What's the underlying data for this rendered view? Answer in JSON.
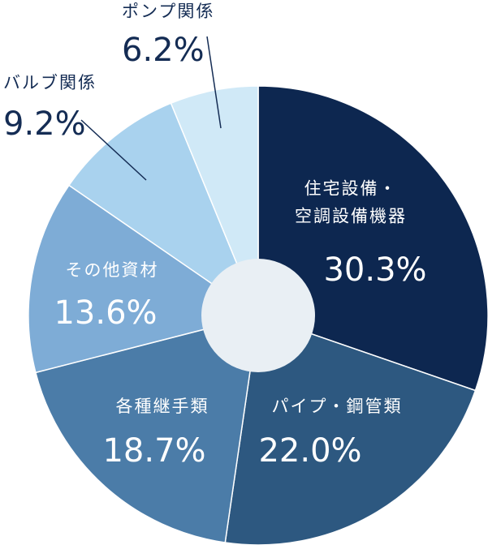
{
  "chart_data": {
    "type": "pie",
    "categories": [
      "住宅設備・\n空調設備機器",
      "パイプ・鋼管類",
      "各種継手類",
      "その他資材",
      "バルブ関係",
      "ポンプ関係"
    ],
    "values": [
      30.3,
      22.0,
      18.7,
      13.6,
      9.2,
      6.2
    ],
    "value_labels": [
      "30.3%",
      "22.0%",
      "18.7%",
      "13.6%",
      "9.2%",
      "6.2%"
    ],
    "colors": [
      "#0d2750",
      "#2d5880",
      "#4b7ca8",
      "#7eacd6",
      "#a9d2ee",
      "#d0e9f7"
    ]
  }
}
